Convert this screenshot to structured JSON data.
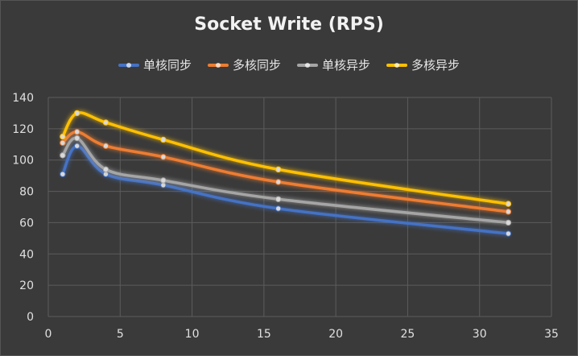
{
  "chart_data": {
    "type": "line",
    "title": "Socket Write (RPS)",
    "xlabel": "",
    "ylabel": "",
    "xlim": [
      0,
      35
    ],
    "ylim": [
      0,
      140
    ],
    "xticks": [
      0,
      5,
      10,
      15,
      20,
      25,
      30,
      35
    ],
    "yticks": [
      0,
      20,
      40,
      60,
      80,
      100,
      120,
      140
    ],
    "grid": true,
    "legend_position": "top",
    "x": [
      1,
      2,
      4,
      8,
      16,
      32
    ],
    "series": [
      {
        "name": "单核同步",
        "color": "#4472c4",
        "values": [
          91,
          109,
          91,
          84,
          69,
          53
        ]
      },
      {
        "name": "多核同步",
        "color": "#ed7d31",
        "values": [
          111,
          118,
          109,
          102,
          86,
          67
        ]
      },
      {
        "name": "单核异步",
        "color": "#a5a5a5",
        "values": [
          103,
          114,
          94,
          87,
          75,
          60
        ]
      },
      {
        "name": "多核异步",
        "color": "#ffc000",
        "values": [
          115,
          130,
          124,
          113,
          94,
          72
        ]
      }
    ]
  }
}
